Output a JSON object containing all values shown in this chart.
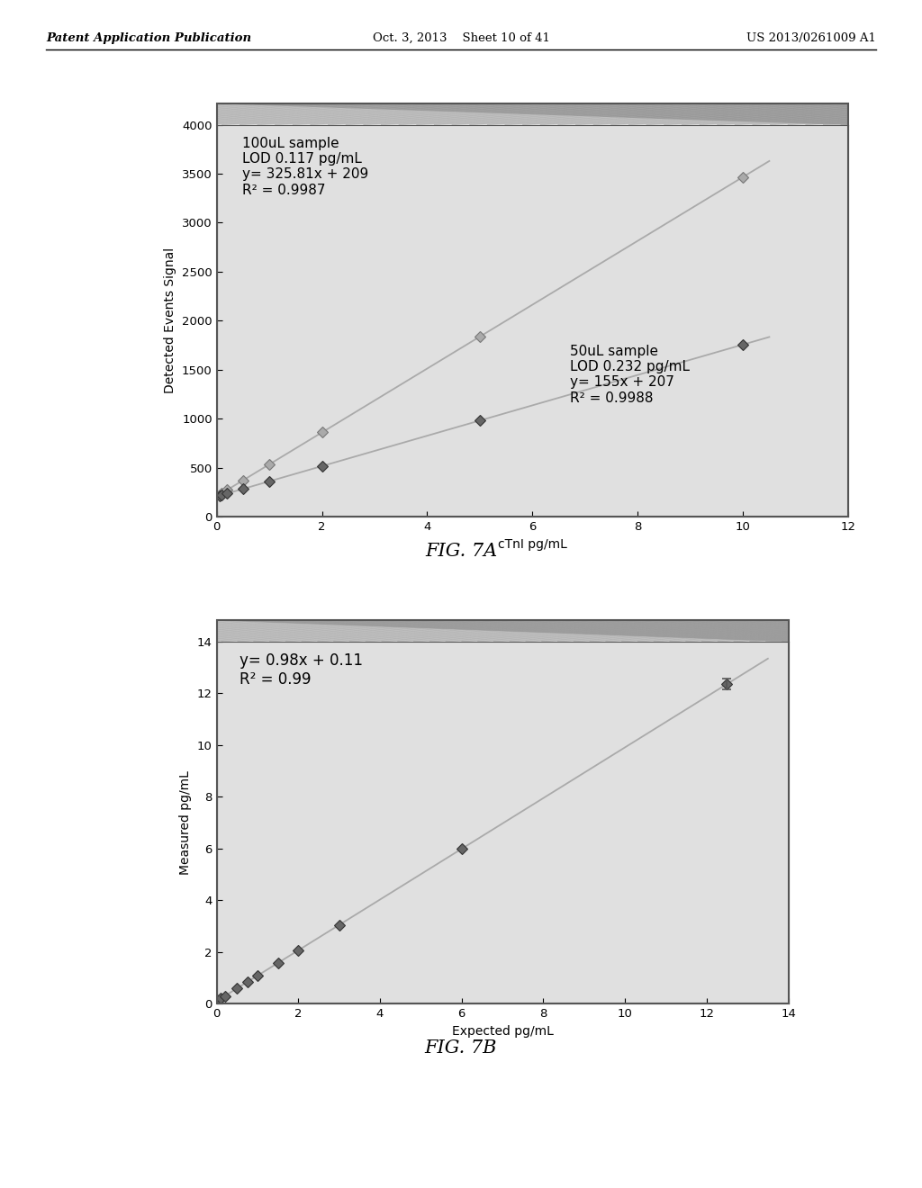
{
  "fig7a": {
    "xlabel": "cTnI pg/mL",
    "ylabel": "Detected Events Signal",
    "xlim": [
      0,
      12
    ],
    "ylim": [
      0,
      4000
    ],
    "xticks": [
      0,
      2,
      4,
      6,
      8,
      10,
      12
    ],
    "yticks": [
      0,
      500,
      1000,
      1500,
      2000,
      2500,
      3000,
      3500,
      4000
    ],
    "x_series": [
      0.05,
      0.1,
      0.2,
      0.5,
      1.0,
      2.0,
      5.0,
      10.0
    ],
    "slope_100": 325.81,
    "intercept_100": 209,
    "slope_50": 155.0,
    "intercept_50": 207,
    "ann_100": "100uL sample\nLOD 0.117 pg/mL\ny= 325.81x + 209\nR² = 0.9987",
    "ann_50": "50uL sample\nLOD 0.232 pg/mL\ny= 155x + 207\nR² = 0.9988",
    "fig_label": "FIG. 7A"
  },
  "fig7b": {
    "xlabel": "Expected pg/mL",
    "ylabel": "Measured pg/mL",
    "xlim": [
      0,
      14
    ],
    "ylim": [
      0,
      14
    ],
    "xticks": [
      0,
      2,
      4,
      6,
      8,
      10,
      12,
      14
    ],
    "yticks": [
      0,
      2,
      4,
      6,
      8,
      10,
      12,
      14
    ],
    "x_data": [
      0.05,
      0.1,
      0.2,
      0.5,
      0.75,
      1.0,
      1.5,
      2.0,
      3.0,
      6.0,
      12.5
    ],
    "slope": 0.98,
    "intercept": 0.11,
    "ann": "y= 0.98x + 0.11\nR² = 0.99",
    "fig_label": "FIG. 7B"
  },
  "header": {
    "left": "Patent Application Publication",
    "center": "Oct. 3, 2013    Sheet 10 of 41",
    "right": "US 2013/0261009 A1"
  },
  "bg_color": "#ffffff",
  "plot_bg": "#e0e0e0",
  "top_band_color": "#b8b8b8",
  "border_color": "#555555",
  "marker": "D",
  "marker_size": 6,
  "line_color": "#aaaaaa",
  "marker_color_light": "#aaaaaa",
  "marker_edge_light": "#777777",
  "marker_color_dark": "#666666",
  "marker_edge_dark": "#333333",
  "font_size": 10,
  "ann_fontsize": 11,
  "fig_label_fontsize": 15
}
